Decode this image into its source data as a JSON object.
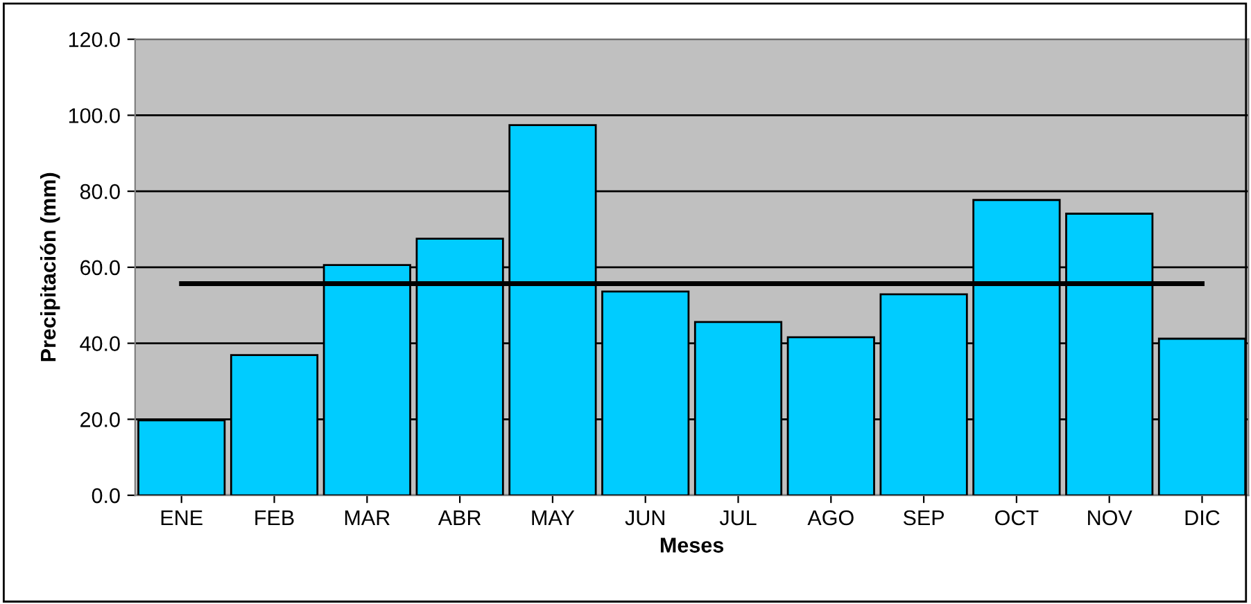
{
  "chart_data": {
    "type": "bar",
    "xlabel": "Meses",
    "ylabel": "Precipitación (mm)",
    "categories": [
      "ENE",
      "FEB",
      "MAR",
      "ABR",
      "MAY",
      "JUN",
      "JUL",
      "AGO",
      "SEP",
      "OCT",
      "NOV",
      "DIC"
    ],
    "series": [
      {
        "color": "#00ccff",
        "values": [
          19.7,
          36.9,
          60.6,
          67.5,
          97.4,
          53.6,
          45.6,
          41.6,
          52.9,
          77.7,
          74.1,
          41.2
        ]
      },
      {
        "type": "line",
        "color": "#000000",
        "values": [
          55.7,
          55.7,
          55.7,
          55.7,
          55.7,
          55.7,
          55.7,
          55.7,
          55.7,
          55.7,
          55.7,
          55.7
        ]
      }
    ],
    "ylim": [
      0,
      120
    ],
    "yticks": [
      {
        "value": 0,
        "label": "0.0"
      },
      {
        "value": 20,
        "label": "20.0"
      },
      {
        "value": 40,
        "label": "40.0"
      },
      {
        "value": 60,
        "label": "60.0"
      },
      {
        "value": 80,
        "label": "80.0"
      },
      {
        "value": 100,
        "label": "100.0"
      },
      {
        "value": 120,
        "label": "120.0"
      }
    ],
    "grid": "y",
    "legend": false
  }
}
